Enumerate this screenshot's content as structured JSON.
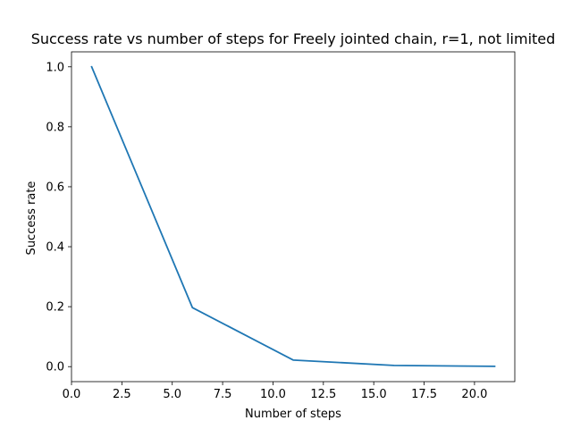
{
  "chart_data": {
    "type": "line",
    "title": "Success rate vs number of steps for Freely jointed chain, r=1, not limited",
    "xlabel": "Number of steps",
    "ylabel": "Success rate",
    "xlim": [
      0.0,
      22.0
    ],
    "ylim": [
      -0.05,
      1.05
    ],
    "xticks": [
      0.0,
      2.5,
      5.0,
      7.5,
      10.0,
      12.5,
      15.0,
      17.5,
      20.0
    ],
    "xtick_labels": [
      "0.0",
      "2.5",
      "5.0",
      "7.5",
      "10.0",
      "12.5",
      "15.0",
      "17.5",
      "20.0"
    ],
    "yticks": [
      0.0,
      0.2,
      0.4,
      0.6,
      0.8,
      1.0
    ],
    "ytick_labels": [
      "0.0",
      "0.2",
      "0.4",
      "0.6",
      "0.8",
      "1.0"
    ],
    "grid": false,
    "series": [
      {
        "x": [
          1,
          6,
          11,
          16,
          21
        ],
        "y": [
          1.0,
          0.197,
          0.022,
          0.004,
          0.001
        ],
        "color": "#1f77b4"
      }
    ]
  }
}
